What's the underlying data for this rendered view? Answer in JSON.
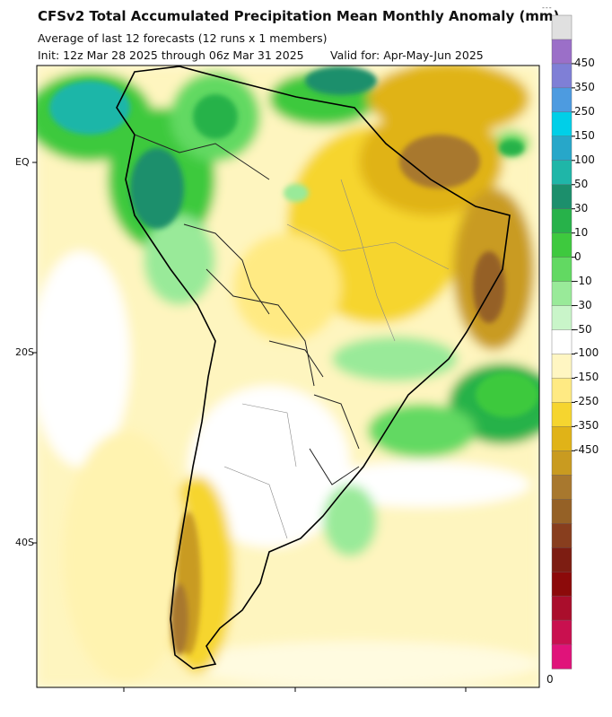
{
  "header": {
    "title": "CFSv2 Total Accumulated Precipitation Mean Monthly Anomaly (mm)",
    "subtitle": "Average of last 12 forecasts (12 runs x 1 members)",
    "init": "Init: 12z Mar 28 2025 through 06z Mar 31 2025",
    "valid": "Valid for: Apr-May-Jun 2025"
  },
  "map": {
    "lat_labels": [
      "EQ",
      "20S",
      "40S"
    ],
    "region": "South America"
  },
  "colorbar": {
    "colors": [
      "#e0e0e0",
      "#9b6fc8",
      "#7f7fd6",
      "#4d9be0",
      "#00cfe8",
      "#27a7c9",
      "#1fb6a8",
      "#1c8f6c",
      "#27b24a",
      "#3ec93e",
      "#62d962",
      "#99ea99",
      "#c9f5c9",
      "#ffffff",
      "#fff6c2",
      "#ffea83",
      "#f6d52f",
      "#e0b318",
      "#c99b20",
      "#a8782e",
      "#956126",
      "#883e1e",
      "#7d1d12",
      "#8c0a0a",
      "#aa0e2c",
      "#c9104f",
      "#e0137a"
    ],
    "labels": [
      "450",
      "350",
      "250",
      "150",
      "100",
      "50",
      "30",
      "10",
      "0",
      "-10",
      "-30",
      "-50",
      "-100",
      "-150",
      "-250",
      "-350",
      "-450"
    ],
    "bottom_label": "0",
    "top_mark": "---"
  }
}
